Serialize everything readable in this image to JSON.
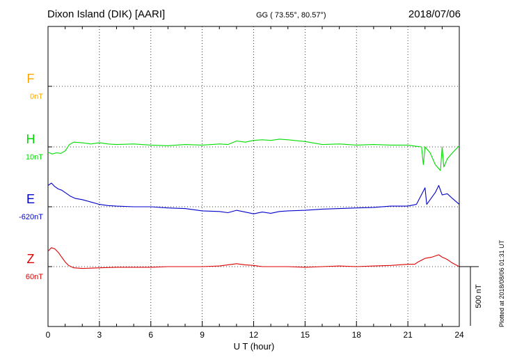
{
  "header": {
    "station": "Dixon Island (DIK)  [AARI]",
    "coords": "GG ( 73.55°,  80.57°)",
    "date": "2018/07/06"
  },
  "footer": {
    "plotted": "Plotted at 2018/08/06 01:31  UT"
  },
  "chart_data": {
    "type": "line",
    "xlabel": "U T (hour)",
    "xlim": [
      0,
      24
    ],
    "xticks": [
      0,
      3,
      6,
      9,
      12,
      15,
      18,
      21,
      24
    ],
    "scale_bar": {
      "label": "500 nT",
      "value_nT": 500
    },
    "series": [
      {
        "name": "F",
        "baseline_label": "0nT",
        "color": "#ffa500",
        "x": [],
        "y": []
      },
      {
        "name": "H",
        "baseline_label": "10nT",
        "color": "#00dd00",
        "x": [
          0,
          0.25,
          0.5,
          0.75,
          1.0,
          1.25,
          1.5,
          2,
          2.5,
          3,
          3.5,
          4,
          5,
          6,
          7,
          8,
          9,
          10,
          10.5,
          11,
          11.5,
          12,
          12.5,
          13,
          13.5,
          14,
          15,
          16,
          17,
          18,
          19,
          20,
          21,
          21.5,
          21.8,
          21.9,
          22.0,
          22.3,
          22.6,
          22.9,
          23.0,
          23.1,
          23.3,
          23.6,
          24
        ],
        "y": [
          -45,
          -60,
          -50,
          -55,
          -35,
          20,
          40,
          35,
          25,
          35,
          25,
          20,
          25,
          15,
          10,
          20,
          15,
          25,
          20,
          50,
          40,
          55,
          60,
          55,
          65,
          60,
          45,
          20,
          25,
          15,
          20,
          15,
          15,
          5,
          0,
          -150,
          0,
          -50,
          -150,
          -200,
          0,
          -170,
          -100,
          -50,
          10
        ]
      },
      {
        "name": "E",
        "baseline_label": "-620nT",
        "color": "#0000cc",
        "x": [
          0,
          0.2,
          0.4,
          0.6,
          0.8,
          1.0,
          1.3,
          1.6,
          2,
          2.5,
          3,
          3.5,
          4,
          5,
          6,
          7,
          8,
          9,
          10,
          10.5,
          11,
          11.5,
          12,
          12.5,
          13,
          13.5,
          14,
          15,
          16,
          17,
          18,
          19,
          20,
          21,
          21.5,
          22,
          22.1,
          22.3,
          22.6,
          22.8,
          22.9,
          23.0,
          23.3,
          23.6,
          24
        ],
        "y": [
          180,
          200,
          170,
          150,
          140,
          120,
          90,
          70,
          60,
          40,
          20,
          10,
          5,
          0,
          0,
          -10,
          -15,
          -35,
          -40,
          -50,
          -30,
          -45,
          -60,
          -45,
          -55,
          -40,
          -35,
          -30,
          -20,
          -15,
          -10,
          -5,
          5,
          5,
          20,
          160,
          20,
          60,
          120,
          180,
          140,
          100,
          110,
          70,
          20
        ]
      },
      {
        "name": "Z",
        "baseline_label": "60nT",
        "color": "#dd0000",
        "x": [
          0,
          0.2,
          0.4,
          0.6,
          0.8,
          1.0,
          1.2,
          1.5,
          2,
          3,
          4,
          5,
          6,
          7,
          8,
          9,
          10,
          11,
          11.5,
          12,
          12.5,
          13,
          14,
          15,
          16,
          17,
          18,
          19,
          20,
          21,
          21.4,
          21.6,
          22,
          22.4,
          22.8,
          23.0,
          23.3,
          23.6,
          24
        ],
        "y": [
          130,
          160,
          150,
          120,
          80,
          40,
          10,
          -10,
          -15,
          -10,
          -5,
          -5,
          -5,
          0,
          0,
          0,
          5,
          25,
          15,
          10,
          0,
          0,
          0,
          -5,
          0,
          5,
          0,
          5,
          10,
          20,
          20,
          40,
          70,
          80,
          100,
          80,
          60,
          30,
          0
        ]
      }
    ]
  }
}
